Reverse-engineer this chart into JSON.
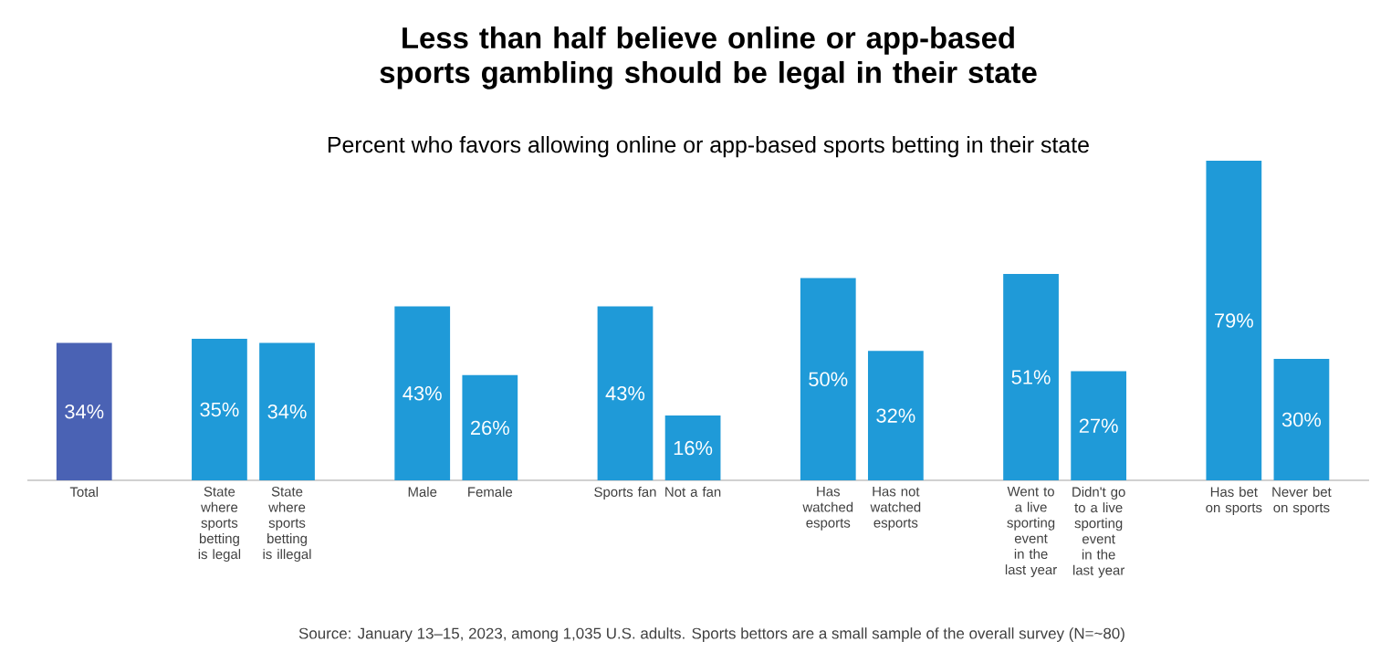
{
  "chart_data": {
    "type": "bar",
    "title": "Less than half believe online or app-based sports gambling should be legal in their state",
    "subtitle": "Percent who favors allowing online or app-based sports betting in their state",
    "categories": [
      "Total",
      "State where sports betting is legal",
      "State where sports betting is illegal",
      "Male",
      "Female",
      "Sports fan",
      "Not a fan",
      "Has watched esports",
      "Has not watched esports",
      "Went to a live sporting event in the last year",
      "Didn't go to a live sporting event in the last year",
      "Has bet on sports",
      "Never bet on sports"
    ],
    "values": [
      34,
      35,
      34,
      43,
      26,
      43,
      16,
      50,
      32,
      51,
      27,
      79,
      30
    ],
    "value_labels": [
      "34%",
      "35%",
      "34%",
      "43%",
      "26%",
      "43%",
      "16%",
      "50%",
      "32%",
      "51%",
      "27%",
      "79%",
      "30%"
    ],
    "colors": [
      "#4a62b4",
      "#1f9ad8",
      "#1f9ad8",
      "#1f9ad8",
      "#1f9ad8",
      "#1f9ad8",
      "#1f9ad8",
      "#1f9ad8",
      "#1f9ad8",
      "#1f9ad8",
      "#1f9ad8",
      "#1f9ad8",
      "#1f9ad8"
    ],
    "annotations": [
      "Source: January 13–15, 2023, among 1,035 U.S. adults. Sports bettors are a small sample of the overall survey (N=~80)"
    ]
  }
}
